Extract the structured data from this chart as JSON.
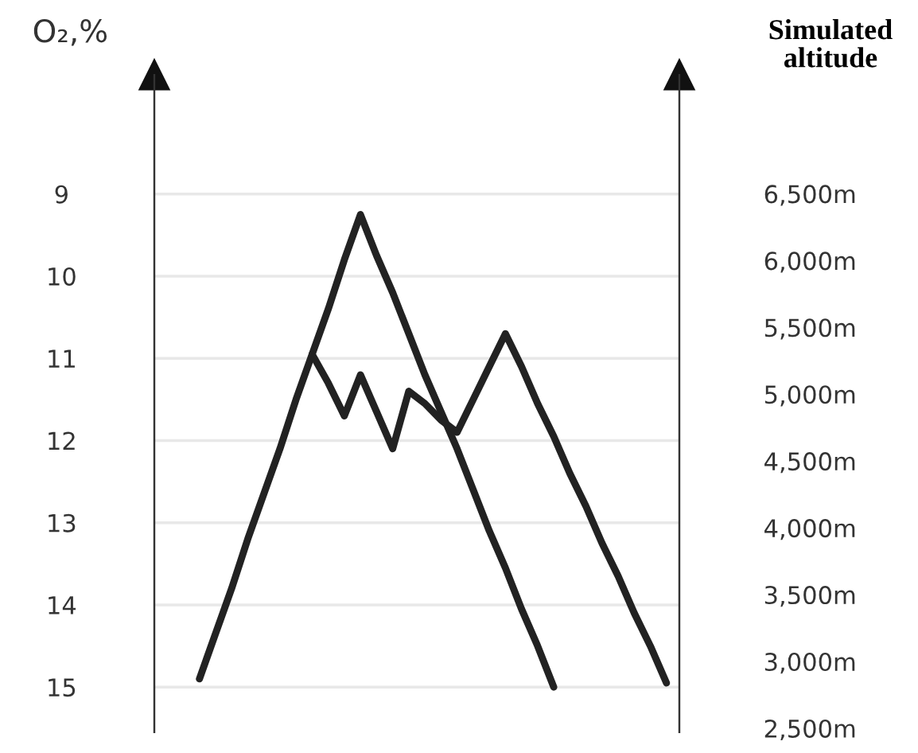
{
  "chart_data": {
    "type": "line",
    "ylabel": "O₂,%",
    "y2label": "Simulated altitude",
    "categories": [
      null,
      null,
      null,
      null,
      null,
      null,
      null,
      null,
      null,
      null,
      null,
      null,
      null,
      null,
      null,
      null,
      null,
      null,
      null,
      null,
      null,
      null,
      null,
      null,
      null,
      null,
      null,
      null,
      null,
      null
    ],
    "series": [
      {
        "color": "#222222",
        "values": [
          14.9,
          14.35,
          13.8,
          13.2,
          12.65,
          12.1,
          11.5,
          10.95,
          10.4,
          9.8,
          9.25,
          9.75,
          10.2,
          10.7,
          11.2,
          11.65,
          12.1,
          12.6,
          13.1,
          13.55,
          14.05,
          14.5,
          15.0,
          null,
          null,
          null,
          null,
          null,
          null,
          null
        ]
      },
      {
        "color": "#222222",
        "values": [
          null,
          null,
          null,
          null,
          null,
          null,
          null,
          10.95,
          11.3,
          11.7,
          11.2,
          11.65,
          12.1,
          11.4,
          11.55,
          11.75,
          11.9,
          11.5,
          11.1,
          10.7,
          11.1,
          11.55,
          11.95,
          12.4,
          12.8,
          13.25,
          13.65,
          14.1,
          14.5,
          14.95
        ]
      }
    ],
    "ylim": [
      15.55,
      7.55
    ],
    "yticks": [
      9,
      10,
      11,
      12,
      13,
      14,
      15
    ],
    "y2lim": [
      2470,
      7390
    ],
    "y2ticks": [
      {
        "value": 6500,
        "label": "6,500m"
      },
      {
        "value": 6000,
        "label": "6,000m"
      },
      {
        "value": 5500,
        "label": "5,500m"
      },
      {
        "value": 5000,
        "label": "5,000m"
      },
      {
        "value": 4500,
        "label": "4,500m"
      },
      {
        "value": 4000,
        "label": "4,000m"
      },
      {
        "value": 3500,
        "label": "3,500m"
      },
      {
        "value": 3000,
        "label": "3,000m"
      },
      {
        "value": 2500,
        "label": "2,500m"
      }
    ],
    "grid": "y",
    "line_style": "solid",
    "marker": "none",
    "legend": false
  }
}
